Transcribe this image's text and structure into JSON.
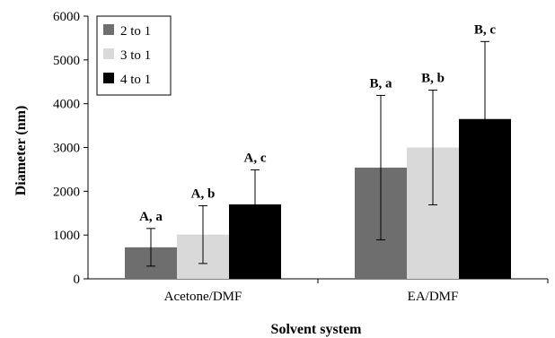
{
  "chart_data": {
    "type": "bar",
    "categories": [
      "Acetone/DMF",
      "EA/DMF"
    ],
    "series": [
      {
        "name": "2 to 1",
        "values": [
          720,
          2540
        ],
        "errors": [
          430,
          1650
        ],
        "color": "#6e6e6e",
        "labels": [
          "A, a",
          "B, a"
        ]
      },
      {
        "name": "3 to 1",
        "values": [
          1010,
          3000
        ],
        "errors": [
          660,
          1310
        ],
        "color": "#d9d9d9",
        "labels": [
          "A, b",
          "B, b"
        ]
      },
      {
        "name": "4 to 1",
        "values": [
          1700,
          3650
        ],
        "errors": [
          790,
          1770
        ],
        "color": "#000000",
        "labels": [
          "A, c",
          "B, c"
        ]
      }
    ],
    "xlabel": "Solvent system",
    "ylabel": "Diameter (nm)",
    "ylim": [
      0,
      6000
    ],
    "yticks": [
      0,
      1000,
      2000,
      3000,
      4000,
      5000,
      6000
    ],
    "legend": "top-left",
    "grid": false
  }
}
